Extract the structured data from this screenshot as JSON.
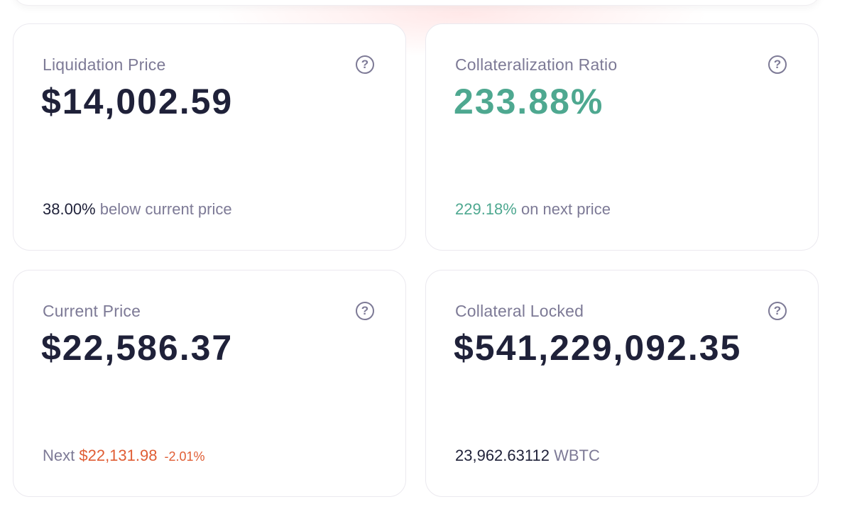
{
  "cards": {
    "liquidation": {
      "label": "Liquidation Price",
      "value": "$14,002.59",
      "footer_value": "38.00%",
      "footer_text": " below current price"
    },
    "collateralization": {
      "label": "Collateralization Ratio",
      "value": "233.88%",
      "footer_value": "229.18%",
      "footer_text": " on next price"
    },
    "current_price": {
      "label": "Current Price",
      "value": "$22,586.37",
      "footer_prefix": "Next ",
      "next_price": "$22,131.98",
      "change": "-2.01%"
    },
    "collateral_locked": {
      "label": "Collateral Locked",
      "value": "$541,229,092.35",
      "footer_value": "23,962.63112",
      "footer_unit": " WBTC"
    }
  },
  "help_icon_glyph": "?",
  "colors": {
    "text_dark": "#1f2139",
    "text_muted": "#7d7a96",
    "positive_green": "#4ea890",
    "negative_orange": "#e05d34"
  },
  "icons": {
    "help": "question-circle-icon"
  }
}
